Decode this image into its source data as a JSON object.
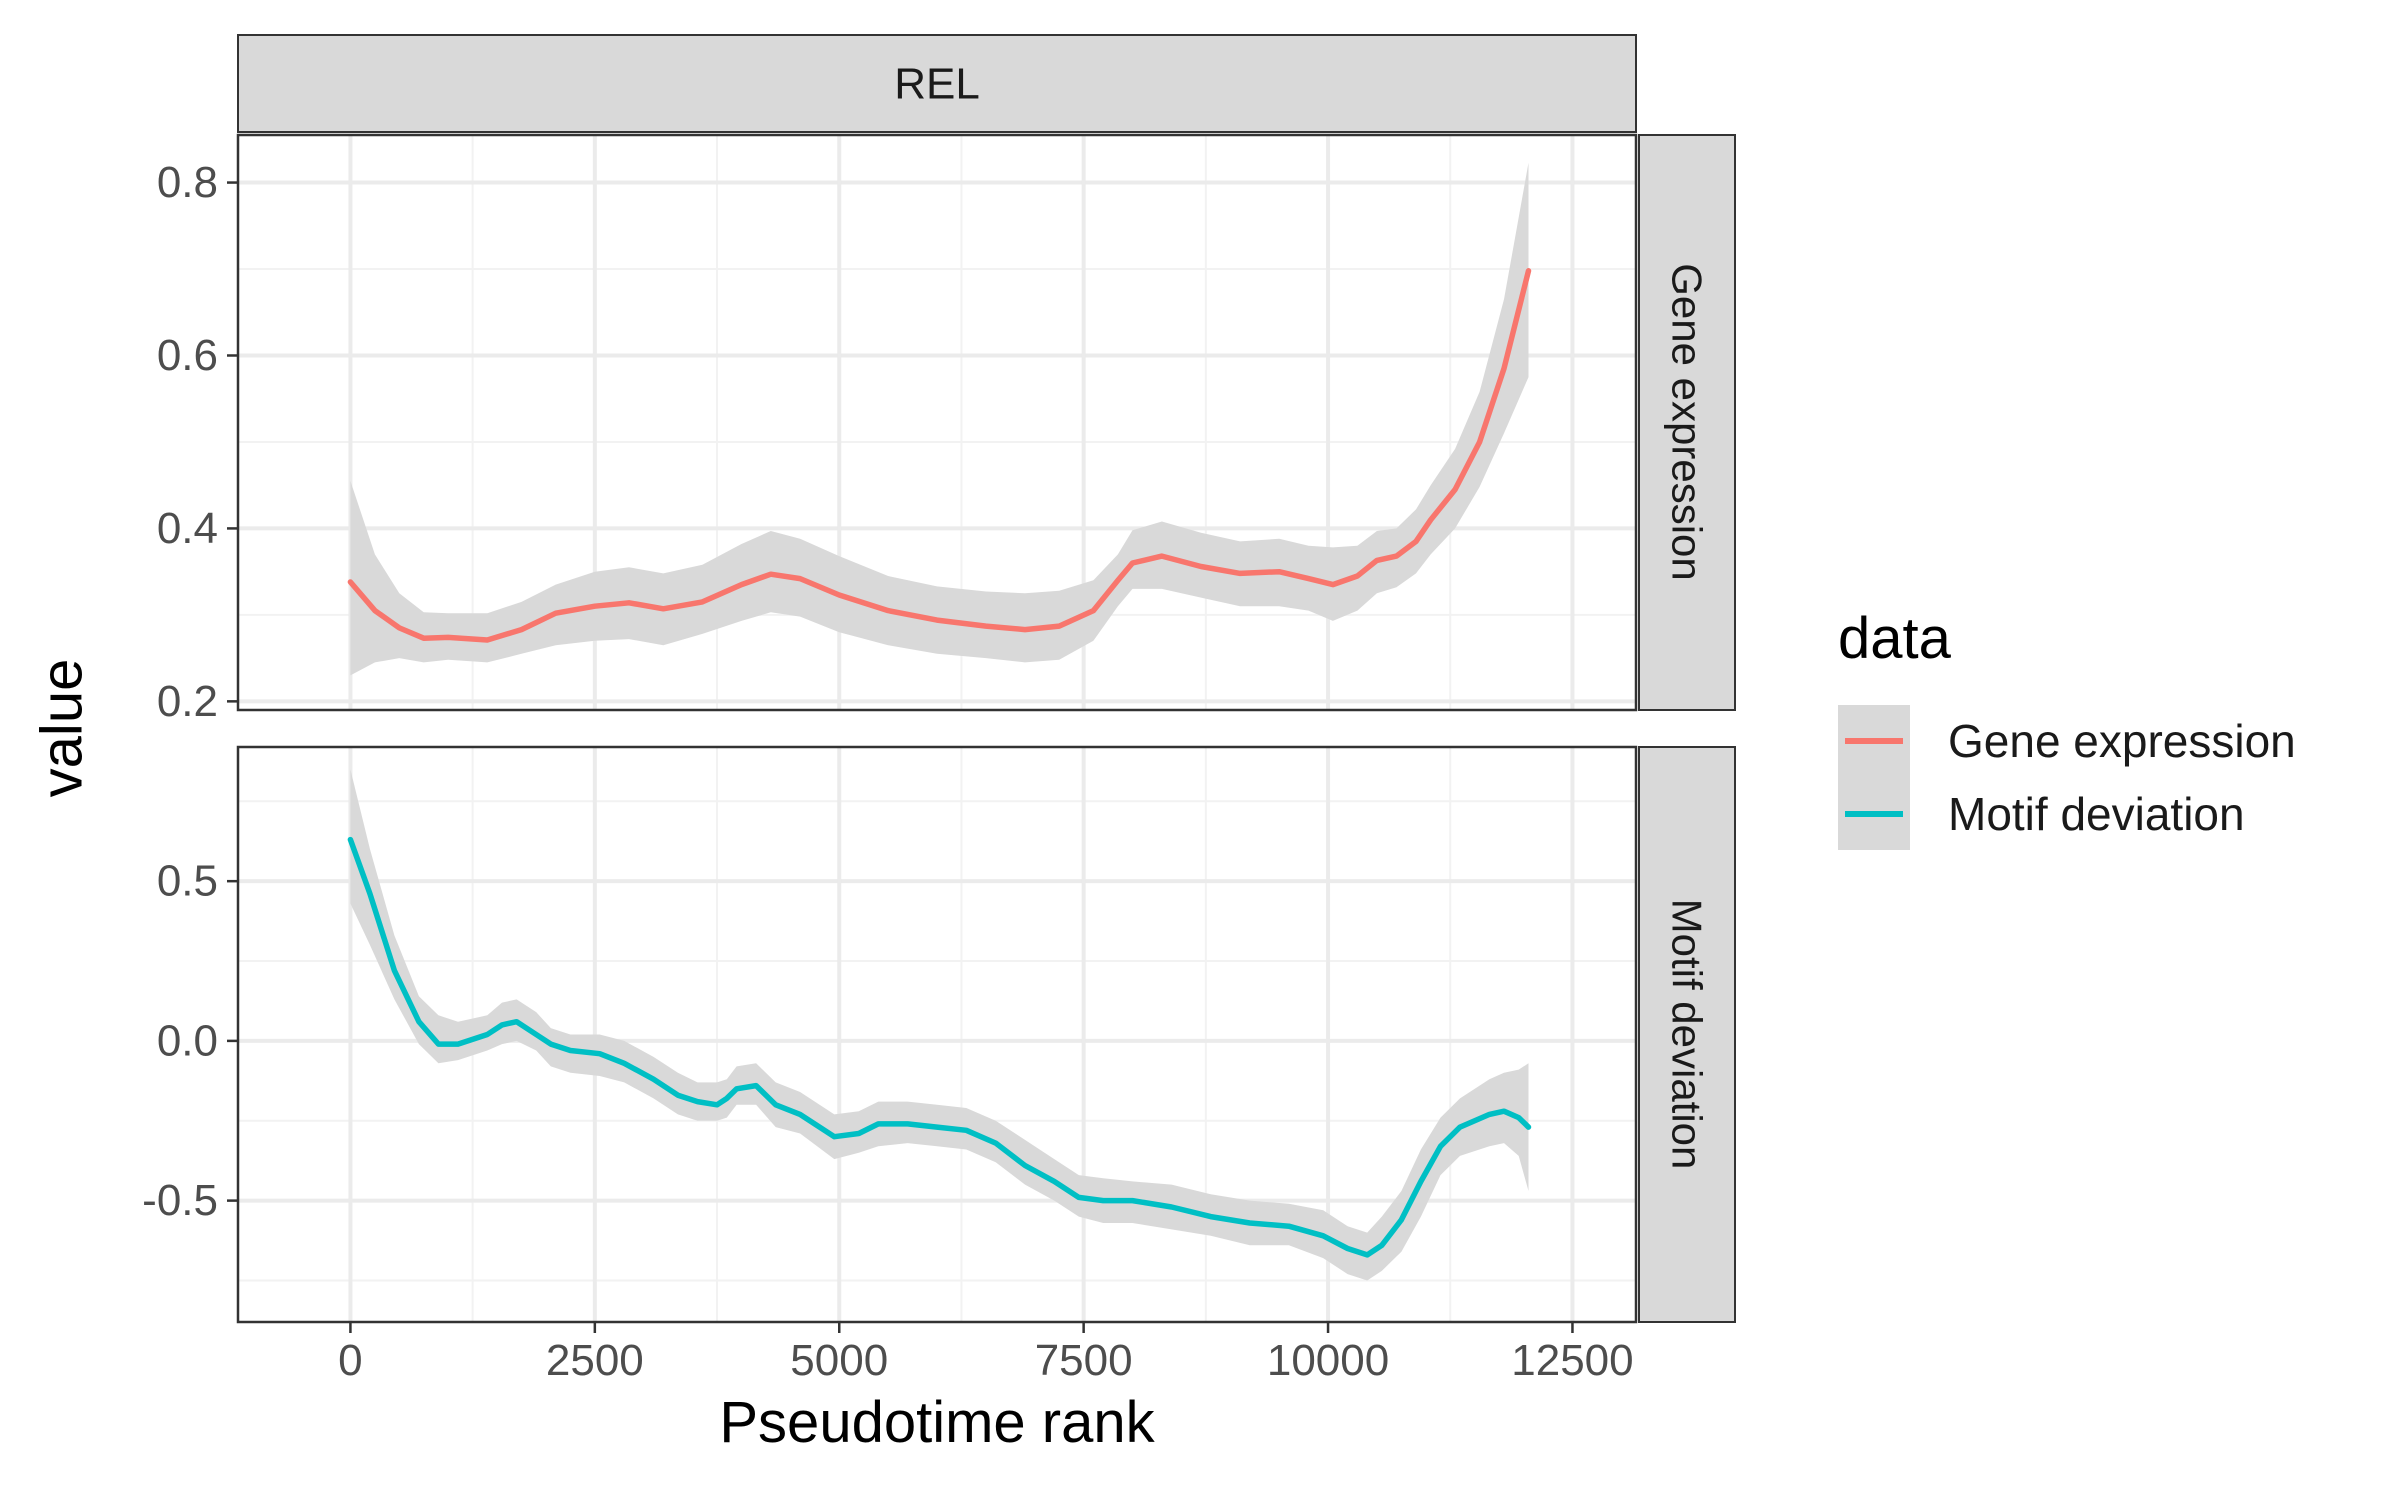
{
  "chart_data": {
    "type": "line",
    "facet_title": "REL",
    "xlabel": "Pseudotime rank",
    "ylabel": "value",
    "legend": {
      "title": "data",
      "placement": "right",
      "entries": [
        {
          "label": "Gene expression",
          "color": "#F8766D"
        },
        {
          "label": "Motif deviation",
          "color": "#00BFC4"
        }
      ]
    },
    "xlim": [
      -1150,
      13150
    ],
    "x_ticks": [
      0,
      2500,
      5000,
      7500,
      10000,
      12500
    ],
    "x_tick_labels": [
      "0",
      "2500",
      "5000",
      "7500",
      "10000",
      "12500"
    ],
    "grid": true,
    "band_color": "#d9d9d9",
    "panels": [
      {
        "strip_label": "Gene expression",
        "ylim": [
          0.19,
          0.855
        ],
        "y_ticks": [
          0.2,
          0.4,
          0.6,
          0.8
        ],
        "y_tick_labels": [
          "0.2",
          "0.4",
          "0.6",
          "0.8"
        ],
        "series": {
          "name": "Gene expression",
          "color": "#F8766D",
          "points": [
            {
              "x": 0,
              "y": 0.338,
              "lo": 0.23,
              "hi": 0.455
            },
            {
              "x": 250,
              "y": 0.305,
              "lo": 0.245,
              "hi": 0.37
            },
            {
              "x": 500,
              "y": 0.285,
              "lo": 0.25,
              "hi": 0.325
            },
            {
              "x": 750,
              "y": 0.273,
              "lo": 0.245,
              "hi": 0.303
            },
            {
              "x": 1000,
              "y": 0.274,
              "lo": 0.248,
              "hi": 0.302
            },
            {
              "x": 1400,
              "y": 0.271,
              "lo": 0.245,
              "hi": 0.302
            },
            {
              "x": 1750,
              "y": 0.283,
              "lo": 0.255,
              "hi": 0.315
            },
            {
              "x": 2100,
              "y": 0.302,
              "lo": 0.265,
              "hi": 0.335
            },
            {
              "x": 2500,
              "y": 0.31,
              "lo": 0.27,
              "hi": 0.35
            },
            {
              "x": 2850,
              "y": 0.314,
              "lo": 0.272,
              "hi": 0.355
            },
            {
              "x": 3200,
              "y": 0.307,
              "lo": 0.265,
              "hi": 0.348
            },
            {
              "x": 3600,
              "y": 0.315,
              "lo": 0.278,
              "hi": 0.358
            },
            {
              "x": 4000,
              "y": 0.335,
              "lo": 0.293,
              "hi": 0.382
            },
            {
              "x": 4300,
              "y": 0.347,
              "lo": 0.303,
              "hi": 0.397
            },
            {
              "x": 4600,
              "y": 0.342,
              "lo": 0.298,
              "hi": 0.388
            },
            {
              "x": 5000,
              "y": 0.323,
              "lo": 0.28,
              "hi": 0.368
            },
            {
              "x": 5500,
              "y": 0.305,
              "lo": 0.265,
              "hi": 0.345
            },
            {
              "x": 6000,
              "y": 0.294,
              "lo": 0.255,
              "hi": 0.333
            },
            {
              "x": 6500,
              "y": 0.287,
              "lo": 0.25,
              "hi": 0.327
            },
            {
              "x": 6900,
              "y": 0.283,
              "lo": 0.245,
              "hi": 0.325
            },
            {
              "x": 7250,
              "y": 0.287,
              "lo": 0.248,
              "hi": 0.328
            },
            {
              "x": 7600,
              "y": 0.305,
              "lo": 0.27,
              "hi": 0.34
            },
            {
              "x": 7850,
              "y": 0.34,
              "lo": 0.31,
              "hi": 0.37
            },
            {
              "x": 8000,
              "y": 0.36,
              "lo": 0.33,
              "hi": 0.398
            },
            {
              "x": 8300,
              "y": 0.368,
              "lo": 0.33,
              "hi": 0.408
            },
            {
              "x": 8700,
              "y": 0.356,
              "lo": 0.32,
              "hi": 0.395
            },
            {
              "x": 9100,
              "y": 0.348,
              "lo": 0.31,
              "hi": 0.385
            },
            {
              "x": 9500,
              "y": 0.35,
              "lo": 0.31,
              "hi": 0.388
            },
            {
              "x": 9800,
              "y": 0.342,
              "lo": 0.305,
              "hi": 0.38
            },
            {
              "x": 10050,
              "y": 0.335,
              "lo": 0.293,
              "hi": 0.378
            },
            {
              "x": 10300,
              "y": 0.345,
              "lo": 0.305,
              "hi": 0.38
            },
            {
              "x": 10500,
              "y": 0.363,
              "lo": 0.325,
              "hi": 0.397
            },
            {
              "x": 10700,
              "y": 0.368,
              "lo": 0.332,
              "hi": 0.4
            },
            {
              "x": 10900,
              "y": 0.385,
              "lo": 0.348,
              "hi": 0.422
            },
            {
              "x": 11050,
              "y": 0.41,
              "lo": 0.37,
              "hi": 0.45
            },
            {
              "x": 11300,
              "y": 0.445,
              "lo": 0.4,
              "hi": 0.492
            },
            {
              "x": 11550,
              "y": 0.5,
              "lo": 0.448,
              "hi": 0.558
            },
            {
              "x": 11800,
              "y": 0.585,
              "lo": 0.51,
              "hi": 0.665
            },
            {
              "x": 12050,
              "y": 0.698,
              "lo": 0.575,
              "hi": 0.823
            }
          ]
        }
      },
      {
        "strip_label": "Motif deviation",
        "ylim": [
          -0.88,
          0.92
        ],
        "y_ticks": [
          -0.5,
          0.0,
          0.5
        ],
        "y_tick_labels": [
          "-0.5",
          "0.0",
          "0.5"
        ],
        "series": {
          "name": "Motif deviation",
          "color": "#00BFC4",
          "points": [
            {
              "x": 0,
              "y": 0.63,
              "lo": 0.43,
              "hi": 0.85
            },
            {
              "x": 200,
              "y": 0.46,
              "lo": 0.3,
              "hi": 0.6
            },
            {
              "x": 450,
              "y": 0.22,
              "lo": 0.13,
              "hi": 0.33
            },
            {
              "x": 700,
              "y": 0.06,
              "lo": -0.01,
              "hi": 0.14
            },
            {
              "x": 900,
              "y": -0.01,
              "lo": -0.07,
              "hi": 0.08
            },
            {
              "x": 1100,
              "y": -0.01,
              "lo": -0.06,
              "hi": 0.06
            },
            {
              "x": 1400,
              "y": 0.02,
              "lo": -0.03,
              "hi": 0.08
            },
            {
              "x": 1550,
              "y": 0.05,
              "lo": -0.01,
              "hi": 0.12
            },
            {
              "x": 1700,
              "y": 0.06,
              "lo": 0.0,
              "hi": 0.13
            },
            {
              "x": 1900,
              "y": 0.02,
              "lo": -0.03,
              "hi": 0.09
            },
            {
              "x": 2050,
              "y": -0.01,
              "lo": -0.08,
              "hi": 0.04
            },
            {
              "x": 2250,
              "y": -0.03,
              "lo": -0.1,
              "hi": 0.02
            },
            {
              "x": 2550,
              "y": -0.04,
              "lo": -0.11,
              "hi": 0.02
            },
            {
              "x": 2800,
              "y": -0.07,
              "lo": -0.13,
              "hi": 0.0
            },
            {
              "x": 3100,
              "y": -0.12,
              "lo": -0.18,
              "hi": -0.05
            },
            {
              "x": 3350,
              "y": -0.17,
              "lo": -0.23,
              "hi": -0.1
            },
            {
              "x": 3550,
              "y": -0.19,
              "lo": -0.25,
              "hi": -0.13
            },
            {
              "x": 3750,
              "y": -0.2,
              "lo": -0.25,
              "hi": -0.13
            },
            {
              "x": 3850,
              "y": -0.18,
              "lo": -0.24,
              "hi": -0.12
            },
            {
              "x": 3950,
              "y": -0.15,
              "lo": -0.2,
              "hi": -0.08
            },
            {
              "x": 4150,
              "y": -0.14,
              "lo": -0.2,
              "hi": -0.07
            },
            {
              "x": 4350,
              "y": -0.2,
              "lo": -0.27,
              "hi": -0.13
            },
            {
              "x": 4600,
              "y": -0.23,
              "lo": -0.29,
              "hi": -0.16
            },
            {
              "x": 4950,
              "y": -0.3,
              "lo": -0.37,
              "hi": -0.23
            },
            {
              "x": 5200,
              "y": -0.29,
              "lo": -0.35,
              "hi": -0.22
            },
            {
              "x": 5400,
              "y": -0.26,
              "lo": -0.33,
              "hi": -0.19
            },
            {
              "x": 5700,
              "y": -0.26,
              "lo": -0.32,
              "hi": -0.19
            },
            {
              "x": 6000,
              "y": -0.27,
              "lo": -0.33,
              "hi": -0.2
            },
            {
              "x": 6300,
              "y": -0.28,
              "lo": -0.34,
              "hi": -0.21
            },
            {
              "x": 6600,
              "y": -0.32,
              "lo": -0.38,
              "hi": -0.25
            },
            {
              "x": 6900,
              "y": -0.39,
              "lo": -0.45,
              "hi": -0.31
            },
            {
              "x": 7200,
              "y": -0.44,
              "lo": -0.5,
              "hi": -0.37
            },
            {
              "x": 7450,
              "y": -0.49,
              "lo": -0.55,
              "hi": -0.42
            },
            {
              "x": 7700,
              "y": -0.5,
              "lo": -0.57,
              "hi": -0.43
            },
            {
              "x": 8000,
              "y": -0.5,
              "lo": -0.57,
              "hi": -0.44
            },
            {
              "x": 8400,
              "y": -0.52,
              "lo": -0.59,
              "hi": -0.45
            },
            {
              "x": 8800,
              "y": -0.55,
              "lo": -0.61,
              "hi": -0.48
            },
            {
              "x": 9200,
              "y": -0.57,
              "lo": -0.64,
              "hi": -0.5
            },
            {
              "x": 9600,
              "y": -0.58,
              "lo": -0.64,
              "hi": -0.51
            },
            {
              "x": 9950,
              "y": -0.61,
              "lo": -0.68,
              "hi": -0.53
            },
            {
              "x": 10200,
              "y": -0.65,
              "lo": -0.73,
              "hi": -0.58
            },
            {
              "x": 10400,
              "y": -0.67,
              "lo": -0.75,
              "hi": -0.6
            },
            {
              "x": 10550,
              "y": -0.64,
              "lo": -0.72,
              "hi": -0.55
            },
            {
              "x": 10750,
              "y": -0.56,
              "lo": -0.66,
              "hi": -0.47
            },
            {
              "x": 10950,
              "y": -0.44,
              "lo": -0.55,
              "hi": -0.34
            },
            {
              "x": 11150,
              "y": -0.33,
              "lo": -0.42,
              "hi": -0.24
            },
            {
              "x": 11350,
              "y": -0.27,
              "lo": -0.36,
              "hi": -0.18
            },
            {
              "x": 11650,
              "y": -0.23,
              "lo": -0.33,
              "hi": -0.12
            },
            {
              "x": 11800,
              "y": -0.22,
              "lo": -0.32,
              "hi": -0.1
            },
            {
              "x": 11950,
              "y": -0.24,
              "lo": -0.36,
              "hi": -0.09
            },
            {
              "x": 12050,
              "y": -0.27,
              "lo": -0.47,
              "hi": -0.07
            }
          ]
        }
      }
    ]
  }
}
